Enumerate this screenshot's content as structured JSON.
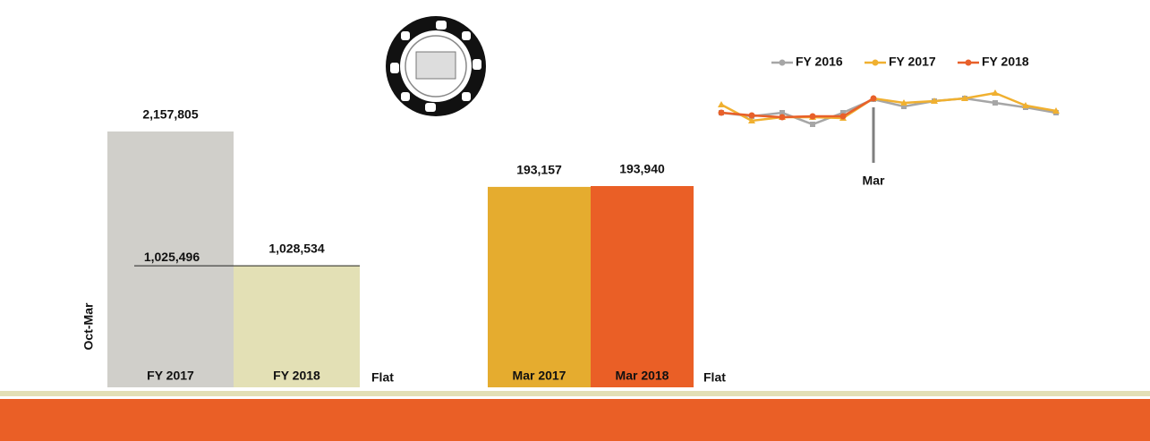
{
  "chart_data": [
    {
      "type": "bar",
      "ylabel": "Oct-Mar",
      "categories": [
        "FY 2017",
        "FY 2018"
      ],
      "values": [
        2157805,
        1028534
      ],
      "value_labels": [
        "2,157,805",
        "1,028,534"
      ],
      "colors": [
        "#d0cfca",
        "#e3e0b5"
      ],
      "reference": {
        "value": 1025496,
        "label": "1,025,496"
      },
      "annotation": "Flat"
    },
    {
      "type": "bar",
      "categories": [
        "Mar 2017",
        "Mar 2018"
      ],
      "values": [
        193157,
        193940
      ],
      "value_labels": [
        "193,157",
        "193,940"
      ],
      "colors": [
        "#e5ac2f",
        "#ea5f26"
      ],
      "annotation": "Flat"
    },
    {
      "type": "line",
      "categories": [
        null,
        null,
        null,
        null,
        null,
        "Mar",
        null,
        null,
        null,
        null,
        null,
        null
      ],
      "legend": "top",
      "series": [
        {
          "name": "FY 2016",
          "color": "#a6a6a6",
          "values": [
            24,
            20,
            24,
            11,
            24,
            39,
            31,
            37,
            40,
            35,
            30,
            24
          ]
        },
        {
          "name": "FY 2017",
          "color": "#f0b030",
          "values": [
            33,
            15,
            19,
            19,
            18,
            40,
            35,
            37,
            40,
            46,
            32,
            26
          ]
        },
        {
          "name": "FY 2018",
          "color": "#e8602a",
          "values": [
            24,
            21,
            19,
            20,
            20,
            40,
            null,
            null,
            null,
            null,
            null,
            null
          ]
        }
      ]
    }
  ]
}
